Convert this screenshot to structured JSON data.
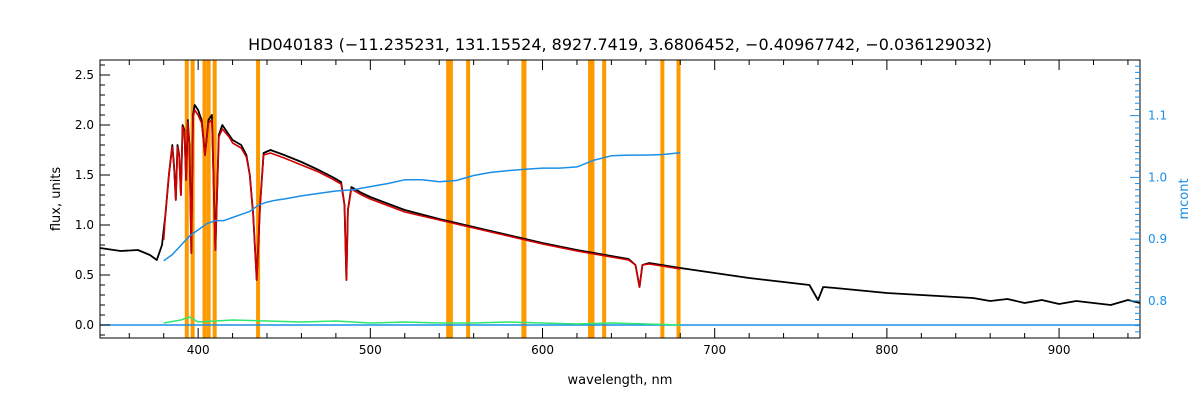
{
  "chart_data": {
    "type": "line",
    "title": "HD040183   (−11.235231, 131.15524, 8927.7419, 3.6806452, −0.40967742, −0.036129032)",
    "xlabel": "wavelength, nm",
    "ylabel": "flux, units",
    "ylabel_right": "mcont",
    "xlim": [
      343,
      947
    ],
    "ylim": [
      -0.13,
      2.65
    ],
    "ylim_right": [
      0.74,
      1.19
    ],
    "x_ticks": [
      "400",
      "500",
      "600",
      "700",
      "800",
      "900"
    ],
    "y_ticks": [
      "0.0",
      "0.5",
      "1.0",
      "1.5",
      "2.0",
      "2.5"
    ],
    "y_right_ticks": [
      "0.8",
      "0.9",
      "1.0",
      "1.1"
    ],
    "grid": false,
    "legend": "none",
    "marker_lines_x": [
      393.4,
      396.8,
      403.7,
      406.1,
      409.6,
      434.8,
      545.2,
      546.8,
      556.8,
      588.9,
      589.5,
      627.6,
      629.0,
      635.8,
      669.6,
      679.0
    ],
    "series": [
      {
        "role": "observed flux",
        "axis": "left",
        "color": "#000000",
        "x": [
          343,
          355,
          365,
          372,
          376,
          379,
          381,
          383,
          385,
          386,
          387,
          388,
          389,
          390,
          391,
          392,
          393,
          394,
          395,
          396,
          397,
          398,
          400,
          402,
          404,
          406,
          408,
          410,
          412,
          414,
          416,
          418,
          420,
          425,
          428,
          430,
          432,
          434,
          436,
          438,
          442,
          450,
          460,
          470,
          478,
          483,
          485,
          486.1,
          487,
          489,
          495,
          500,
          520,
          540,
          560,
          580,
          600,
          620,
          640,
          650,
          654,
          656.3,
          658,
          662,
          680,
          700,
          720,
          740,
          755,
          760,
          763,
          770,
          800,
          820,
          850,
          860,
          870,
          880,
          890,
          900,
          910,
          920,
          930,
          940,
          947
        ],
        "y": [
          0.77,
          0.74,
          0.75,
          0.7,
          0.65,
          0.8,
          1.1,
          1.5,
          1.8,
          1.6,
          1.25,
          1.8,
          1.7,
          1.3,
          2.0,
          1.95,
          1.45,
          2.05,
          1.8,
          0.72,
          2.1,
          2.2,
          2.15,
          2.05,
          1.7,
          2.05,
          2.1,
          0.75,
          1.9,
          2.0,
          1.95,
          1.9,
          1.85,
          1.8,
          1.7,
          1.5,
          1.1,
          0.45,
          1.2,
          1.72,
          1.75,
          1.7,
          1.63,
          1.55,
          1.48,
          1.43,
          1.2,
          0.45,
          1.15,
          1.38,
          1.32,
          1.28,
          1.15,
          1.06,
          0.98,
          0.9,
          0.82,
          0.75,
          0.69,
          0.66,
          0.6,
          0.38,
          0.6,
          0.62,
          0.57,
          0.52,
          0.47,
          0.43,
          0.4,
          0.25,
          0.38,
          0.37,
          0.32,
          0.3,
          0.27,
          0.24,
          0.26,
          0.22,
          0.25,
          0.21,
          0.24,
          0.22,
          0.2,
          0.25,
          0.22
        ]
      },
      {
        "role": "model fit",
        "axis": "left",
        "color": "#d40000",
        "x": [
          380,
          381,
          383,
          385,
          386,
          387,
          388,
          389,
          390,
          391,
          392,
          393,
          394,
          395,
          396,
          397,
          398,
          400,
          402,
          404,
          406,
          408,
          410,
          412,
          414,
          416,
          418,
          420,
          425,
          428,
          430,
          432,
          434,
          436,
          438,
          442,
          450,
          460,
          470,
          478,
          483,
          485,
          486.1,
          487,
          489,
          495,
          500,
          520,
          540,
          560,
          580,
          600,
          620,
          640,
          650,
          654,
          656.3,
          658,
          662,
          680
        ],
        "y": [
          0.85,
          1.1,
          1.5,
          1.78,
          1.58,
          1.25,
          1.78,
          1.68,
          1.3,
          1.98,
          1.93,
          1.45,
          2.03,
          1.78,
          0.72,
          2.08,
          2.15,
          2.1,
          2.02,
          1.7,
          2.02,
          2.05,
          0.75,
          1.88,
          1.96,
          1.92,
          1.88,
          1.82,
          1.77,
          1.68,
          1.5,
          1.1,
          0.45,
          1.2,
          1.7,
          1.72,
          1.67,
          1.6,
          1.53,
          1.46,
          1.41,
          1.2,
          0.45,
          1.15,
          1.36,
          1.3,
          1.26,
          1.13,
          1.05,
          0.97,
          0.89,
          0.81,
          0.74,
          0.68,
          0.65,
          0.6,
          0.38,
          0.6,
          0.61,
          0.56
        ]
      },
      {
        "role": "residuals",
        "axis": "left",
        "color": "#2ee86e",
        "x": [
          380,
          390,
          395,
          400,
          410,
          420,
          440,
          460,
          480,
          500,
          520,
          540,
          560,
          580,
          600,
          620,
          640,
          660,
          680
        ],
        "y": [
          0.02,
          0.05,
          0.08,
          0.03,
          0.04,
          0.05,
          0.04,
          0.03,
          0.04,
          0.02,
          0.03,
          0.02,
          0.02,
          0.03,
          0.02,
          0.01,
          0.02,
          0.01,
          0.0
        ]
      },
      {
        "role": "zero line",
        "axis": "left",
        "color": "#1a8fe8",
        "x": [
          343,
          947
        ],
        "y": [
          0.0,
          0.0
        ]
      },
      {
        "role": "continuum",
        "axis": "right",
        "color": "#1a8fe8",
        "x": [
          380,
          385,
          390,
          395,
          400,
          405,
          410,
          415,
          420,
          425,
          430,
          435,
          440,
          445,
          450,
          460,
          470,
          480,
          490,
          500,
          510,
          520,
          530,
          540,
          550,
          560,
          570,
          580,
          590,
          600,
          610,
          620,
          630,
          640,
          650,
          660,
          670,
          680
        ],
        "y": [
          0.865,
          0.875,
          0.89,
          0.905,
          0.915,
          0.925,
          0.93,
          0.93,
          0.935,
          0.94,
          0.945,
          0.955,
          0.96,
          0.963,
          0.965,
          0.97,
          0.974,
          0.978,
          0.98,
          0.985,
          0.99,
          0.996,
          0.996,
          0.993,
          0.995,
          1.003,
          1.008,
          1.011,
          1.013,
          1.015,
          1.015,
          1.017,
          1.028,
          1.035,
          1.036,
          1.036,
          1.037,
          1.04
        ]
      }
    ]
  }
}
